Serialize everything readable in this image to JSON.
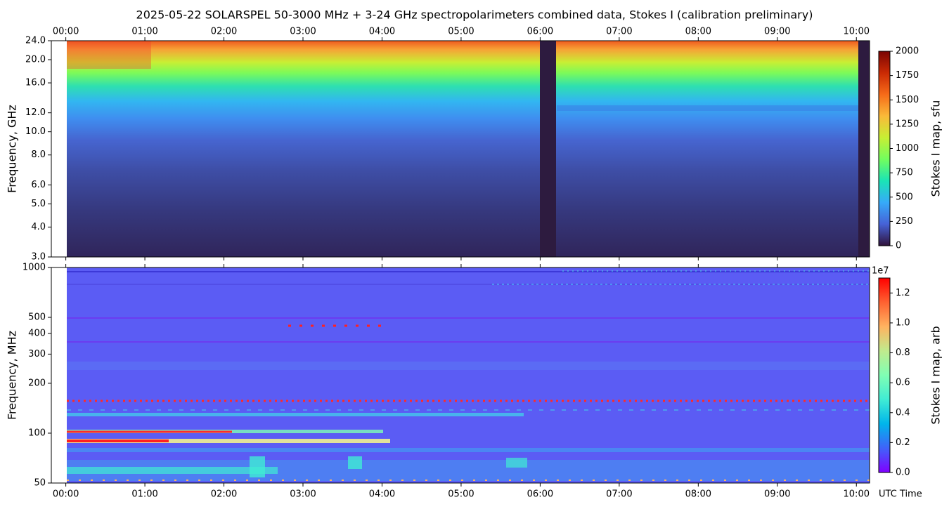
{
  "chart_data": [
    {
      "type": "heatmap",
      "title": "2025-05-22  SOLARSPEL  50-3000 MHz  +  3-24 GHz  spectropolarimeters combined data,  Stokes I  (calibration preliminary)",
      "ylabel": "Frequency, GHz",
      "colorbar_label": "Stokes I map, sfu",
      "xaxis": "top",
      "xlim": [
        -11,
        610
      ],
      "xticks": [
        {
          "value": 0,
          "label": "00:00"
        },
        {
          "value": 60,
          "label": "01:00"
        },
        {
          "value": 120,
          "label": "02:00"
        },
        {
          "value": 180,
          "label": "03:00"
        },
        {
          "value": 240,
          "label": "04:00"
        },
        {
          "value": 300,
          "label": "05:00"
        },
        {
          "value": 360,
          "label": "06:00"
        },
        {
          "value": 420,
          "label": "07:00"
        },
        {
          "value": 480,
          "label": "08:00"
        },
        {
          "value": 540,
          "label": "09:00"
        },
        {
          "value": 600,
          "label": "10:00"
        }
      ],
      "ylim": [
        3,
        24
      ],
      "ylog": true,
      "yticks": [
        {
          "value": 3,
          "label": "3.0"
        },
        {
          "value": 4,
          "label": "4.0"
        },
        {
          "value": 5,
          "label": "5.0"
        },
        {
          "value": 6,
          "label": "6.0"
        },
        {
          "value": 8,
          "label": "8.0"
        },
        {
          "value": 10,
          "label": "10.0"
        },
        {
          "value": 12,
          "label": "12.0"
        },
        {
          "value": 16,
          "label": "16.0"
        },
        {
          "value": 20,
          "label": "20.0"
        },
        {
          "value": 24,
          "label": "24.0"
        }
      ],
      "clim": [
        0,
        2000
      ],
      "cticks": [
        0,
        250,
        500,
        750,
        1000,
        1250,
        1500,
        1750,
        2000
      ],
      "colormap": [
        "#30123b",
        "#4662d7",
        "#36aaf9",
        "#1ae4b6",
        "#72fe5e",
        "#c7ef34",
        "#faba39",
        "#f66b19",
        "#ca2a04",
        "#7a0403"
      ]
    },
    {
      "type": "heatmap",
      "ylabel": "Frequency, MHz",
      "xlabel": "UTC Time",
      "colorbar_label": "Stokes I map, arb",
      "colorbar_offset": "1e7",
      "xaxis": "bottom",
      "xlim": [
        -11,
        610
      ],
      "xticks": [
        {
          "value": 0,
          "label": "00:00"
        },
        {
          "value": 60,
          "label": "01:00"
        },
        {
          "value": 120,
          "label": "02:00"
        },
        {
          "value": 180,
          "label": "03:00"
        },
        {
          "value": 240,
          "label": "04:00"
        },
        {
          "value": 300,
          "label": "05:00"
        },
        {
          "value": 360,
          "label": "06:00"
        },
        {
          "value": 420,
          "label": "07:00"
        },
        {
          "value": 480,
          "label": "08:00"
        },
        {
          "value": 540,
          "label": "09:00"
        },
        {
          "value": 600,
          "label": "10:00"
        }
      ],
      "ylim": [
        50,
        1000
      ],
      "ylog": true,
      "yticks": [
        50,
        100,
        200,
        300,
        400,
        500,
        1000
      ],
      "clim": [
        0,
        1.3
      ],
      "cticks": [
        {
          "value": 0,
          "label": "0.0"
        },
        0.2,
        0.4,
        0.6,
        0.8,
        {
          "value": 1,
          "label": "1.0"
        },
        1.2
      ],
      "colormap": [
        "#8000ff",
        "#4062fa",
        "#00b5eb",
        "#40ecd4",
        "#80ffb4",
        "#c0eb8d",
        "#ffb360",
        "#ff6231",
        "#ff0000"
      ]
    }
  ]
}
